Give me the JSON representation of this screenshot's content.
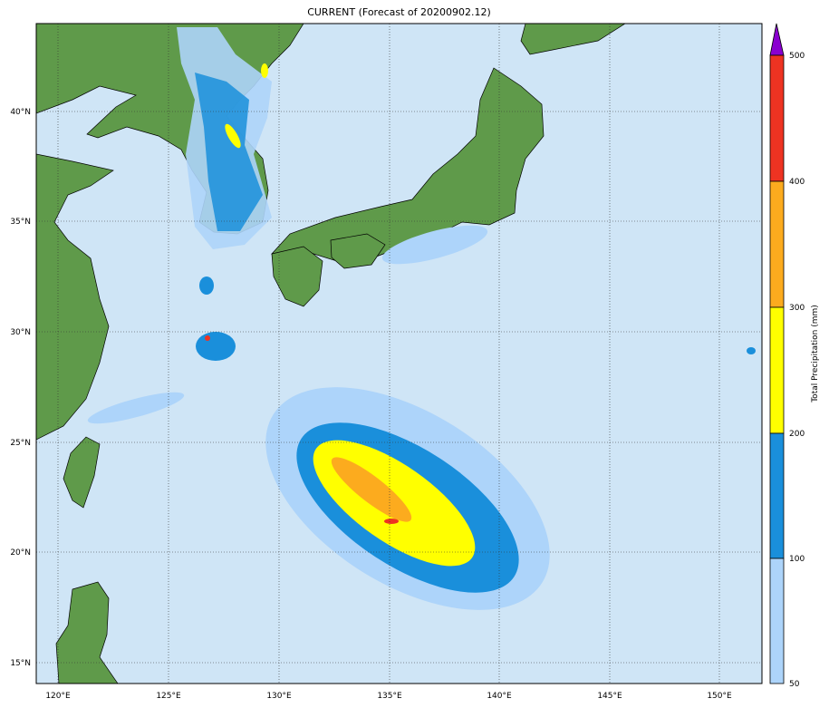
{
  "title": "CURRENT (Forecast of 20200902.12)",
  "map": {
    "lon_ticks": [
      "120°E",
      "125°E",
      "130°E",
      "135°E",
      "140°E",
      "145°E",
      "150°E"
    ],
    "lat_ticks": [
      "40°N",
      "35°N",
      "30°N",
      "25°N",
      "20°N",
      "15°N"
    ],
    "ocean_color": "#cfe5f6",
    "land_color": "#5f9a4a"
  },
  "colorbar": {
    "label": "Total Precipitation (mm)",
    "ticks": [
      "50",
      "100",
      "200",
      "300",
      "400",
      "500"
    ],
    "colors": [
      "#add4fa",
      "#1a8fdb",
      "#ffff00",
      "#fcab1e",
      "#ee3322",
      "#8a00d0"
    ],
    "extend": "max"
  }
}
